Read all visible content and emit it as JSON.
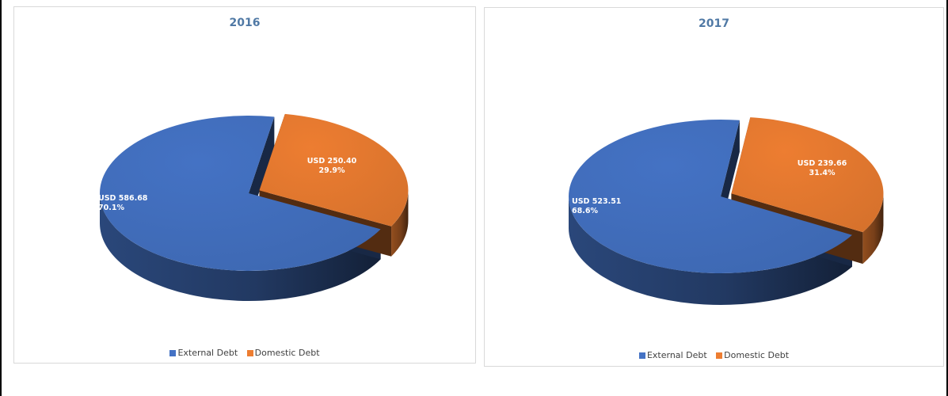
{
  "chart_data": [
    {
      "type": "pie",
      "title": "2016",
      "categories": [
        "External Debt",
        "Domestic Debt"
      ],
      "values": [
        586.68,
        250.4
      ],
      "percents": [
        "70.1%",
        "29.9%"
      ],
      "labels": [
        "USD 586.68",
        "USD 250.40"
      ],
      "colors": [
        "#4472c4",
        "#ed7d31"
      ],
      "legend_position": "bottom",
      "exploded_slice": "Domestic Debt"
    },
    {
      "type": "pie",
      "title": "2017",
      "categories": [
        "External Debt",
        "Domestic Debt"
      ],
      "values": [
        523.51,
        239.66
      ],
      "percents": [
        "68.6%",
        "31.4%"
      ],
      "labels": [
        "USD 523.51",
        "USD 239.66"
      ],
      "colors": [
        "#4472c4",
        "#ed7d31"
      ],
      "legend_position": "bottom",
      "exploded_slice": "Domestic Debt"
    }
  ]
}
